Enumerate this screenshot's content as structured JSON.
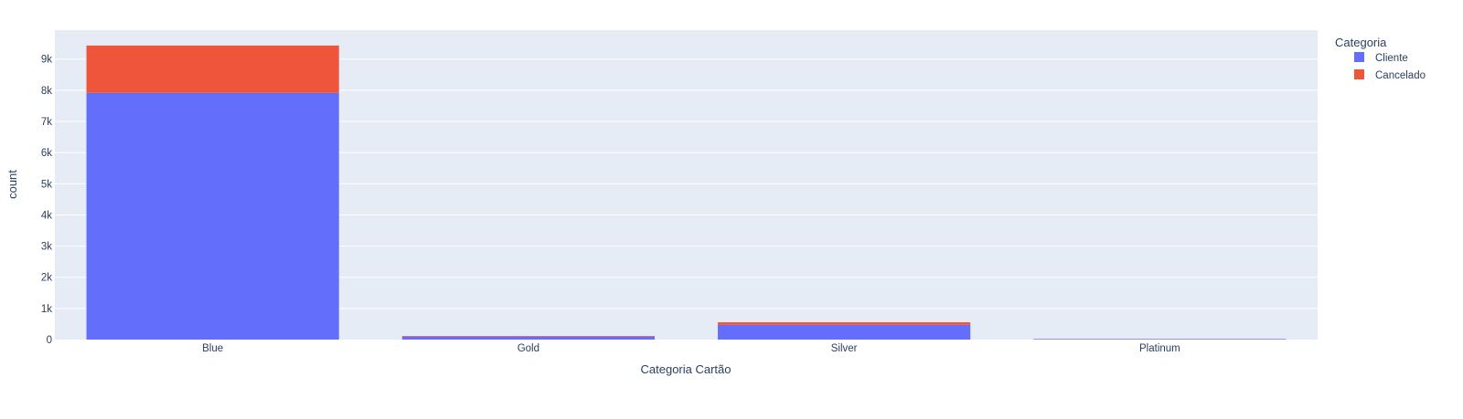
{
  "chart_data": {
    "type": "bar",
    "barmode": "stack",
    "categories": [
      "Blue",
      "Gold",
      "Silver",
      "Platinum"
    ],
    "series": [
      {
        "name": "Cliente",
        "color": "#636efa",
        "values": [
          7917,
          95,
          473,
          15
        ]
      },
      {
        "name": "Cancelado",
        "color": "#ef553b",
        "values": [
          1519,
          21,
          82,
          5
        ]
      }
    ],
    "xlabel": "Categoria Cartão",
    "ylabel": "count",
    "ylim": [
      0,
      9930
    ],
    "y_ticks": [
      0,
      1000,
      2000,
      3000,
      4000,
      5000,
      6000,
      7000,
      8000,
      9000
    ],
    "y_tick_labels": [
      "0",
      "1k",
      "2k",
      "3k",
      "4k",
      "5k",
      "6k",
      "7k",
      "8k",
      "9k"
    ],
    "legend_title": "Categoria",
    "legend_position": "top-right",
    "grid": true,
    "plot_background": "#e5ecf6"
  }
}
